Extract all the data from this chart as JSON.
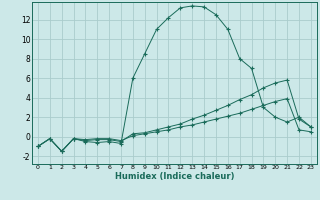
{
  "xlabel": "Humidex (Indice chaleur)",
  "bg_color": "#cce8e8",
  "line_color": "#1a6b5a",
  "grid_color": "#aacccc",
  "xlim": [
    -0.5,
    23.5
  ],
  "ylim": [
    -2.8,
    13.8
  ],
  "xticks": [
    0,
    1,
    2,
    3,
    4,
    5,
    6,
    7,
    8,
    9,
    10,
    11,
    12,
    13,
    14,
    15,
    16,
    17,
    18,
    19,
    20,
    21,
    22,
    23
  ],
  "yticks": [
    -2,
    0,
    2,
    4,
    6,
    8,
    10,
    12
  ],
  "line1_x": [
    0,
    1,
    2,
    3,
    4,
    5,
    6,
    7,
    8,
    9,
    10,
    11,
    12,
    13,
    14,
    15,
    16,
    17,
    18,
    19,
    20,
    21,
    22,
    23
  ],
  "line1_y": [
    -1.0,
    -0.2,
    -1.5,
    -0.2,
    -0.5,
    -0.6,
    -0.5,
    -0.7,
    6.0,
    8.5,
    11.0,
    12.2,
    13.2,
    13.4,
    13.3,
    12.5,
    11.0,
    8.0,
    7.0,
    3.0,
    2.0,
    1.5,
    2.0,
    1.0
  ],
  "line2_x": [
    0,
    1,
    2,
    3,
    4,
    5,
    6,
    7,
    8,
    9,
    10,
    11,
    12,
    13,
    14,
    15,
    16,
    17,
    18,
    19,
    20,
    21,
    22,
    23
  ],
  "line2_y": [
    -1.0,
    -0.2,
    -1.5,
    -0.2,
    -0.4,
    -0.3,
    -0.3,
    -0.5,
    0.3,
    0.4,
    0.7,
    1.0,
    1.3,
    1.8,
    2.2,
    2.7,
    3.2,
    3.8,
    4.3,
    5.0,
    5.5,
    5.8,
    1.8,
    1.0
  ],
  "line3_x": [
    0,
    1,
    2,
    3,
    4,
    5,
    6,
    7,
    8,
    9,
    10,
    11,
    12,
    13,
    14,
    15,
    16,
    17,
    18,
    19,
    20,
    21,
    22,
    23
  ],
  "line3_y": [
    -1.0,
    -0.2,
    -1.5,
    -0.2,
    -0.3,
    -0.2,
    -0.2,
    -0.4,
    0.1,
    0.3,
    0.5,
    0.7,
    1.0,
    1.2,
    1.5,
    1.8,
    2.1,
    2.4,
    2.8,
    3.2,
    3.6,
    3.9,
    0.7,
    0.5
  ]
}
